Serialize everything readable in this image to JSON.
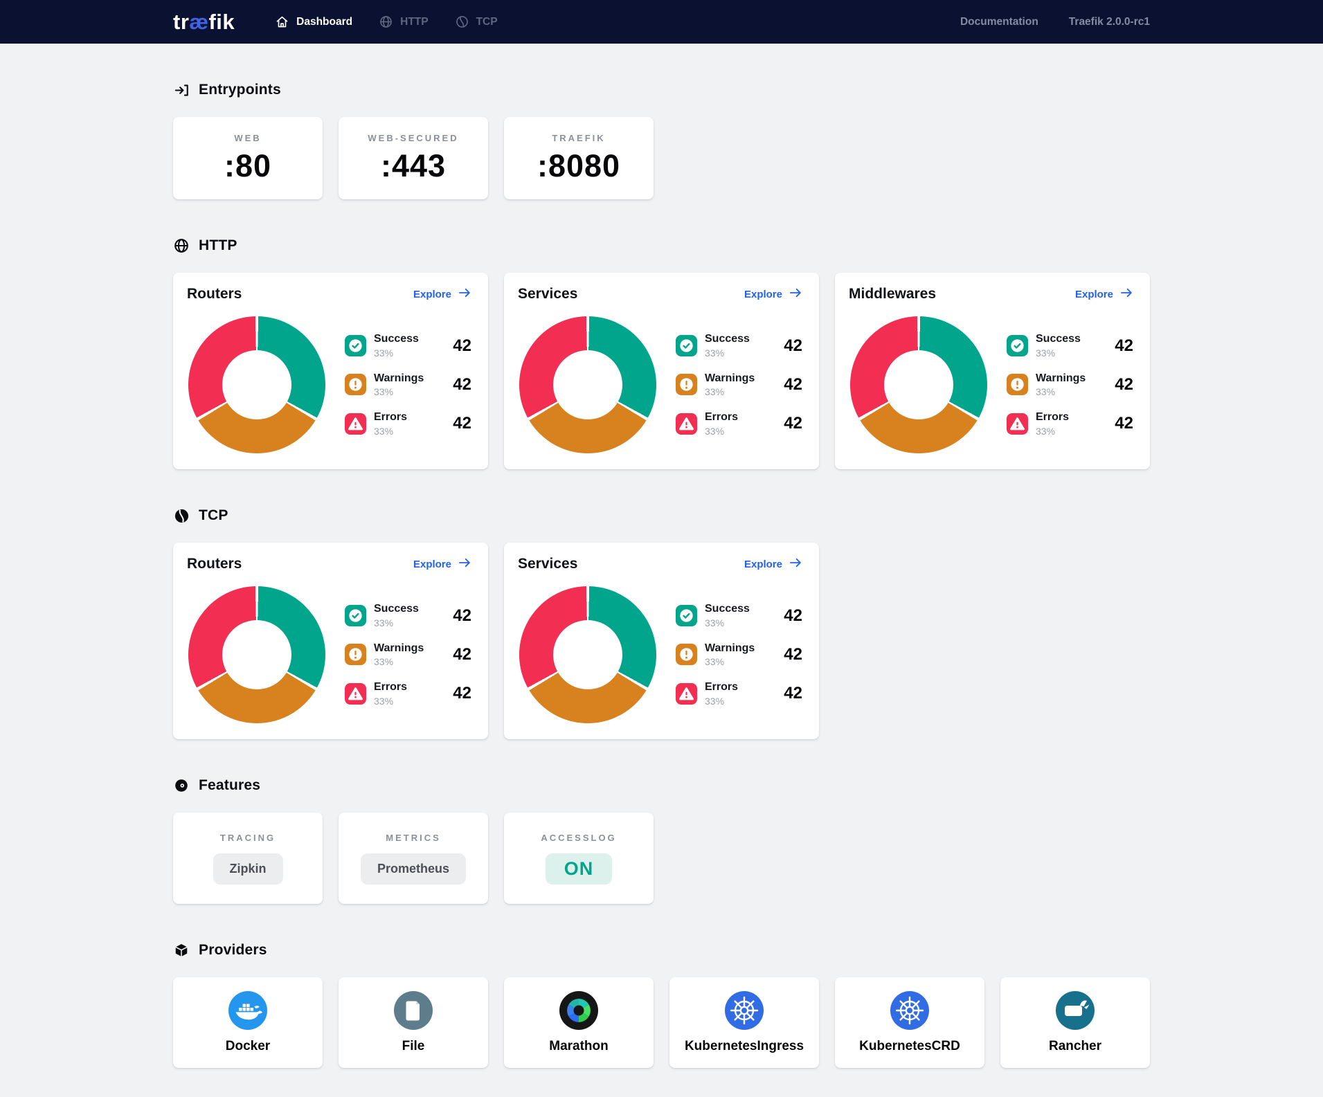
{
  "navbar": {
    "logo": {
      "pre": "tr",
      "mid": "æ",
      "post": "fik"
    },
    "items": [
      {
        "label": "Dashboard",
        "icon": "home-icon",
        "active": true
      },
      {
        "label": "HTTP",
        "icon": "globe-icon",
        "active": false
      },
      {
        "label": "TCP",
        "icon": "ball-icon",
        "active": false
      }
    ],
    "right": [
      {
        "label": "Documentation",
        "interactable": true
      },
      {
        "label": "Traefik 2.0.0-rc1",
        "interactable": false
      }
    ]
  },
  "sections": {
    "entrypoints": {
      "title": "Entrypoints",
      "icon": "login-icon",
      "cards": [
        {
          "label": "WEB",
          "value": ":80"
        },
        {
          "label": "WEB-SECURED",
          "value": ":443"
        },
        {
          "label": "TRAEFIK",
          "value": ":8080"
        }
      ]
    },
    "http": {
      "title": "HTTP",
      "icon": "globe-icon",
      "panels": [
        "Routers",
        "Services",
        "Middlewares"
      ]
    },
    "tcp": {
      "title": "TCP",
      "icon": "ball-icon",
      "panels": [
        "Routers",
        "Services"
      ]
    },
    "features": {
      "title": "Features",
      "icon": "toggle-icon",
      "cards": [
        {
          "label": "TRACING",
          "value": "Zipkin",
          "variant": "gray"
        },
        {
          "label": "METRICS",
          "value": "Prometheus",
          "variant": "gray"
        },
        {
          "label": "ACCESSLOG",
          "value": "ON",
          "variant": "teal"
        }
      ]
    },
    "providers": {
      "title": "Providers",
      "icon": "package-icon",
      "cards": [
        {
          "label": "Docker",
          "icon": "docker-icon"
        },
        {
          "label": "File",
          "icon": "file-icon"
        },
        {
          "label": "Marathon",
          "icon": "marathon-icon"
        },
        {
          "label": "KubernetesIngress",
          "icon": "kubernetes-icon"
        },
        {
          "label": "KubernetesCRD",
          "icon": "kubernetes-icon"
        },
        {
          "label": "Rancher",
          "icon": "rancher-icon"
        }
      ]
    }
  },
  "panel_common": {
    "explore_label": "Explore",
    "legend": [
      {
        "name": "Success",
        "pct": "33%",
        "count": "42",
        "icon": "check-icon",
        "color": "#00a58c"
      },
      {
        "name": "Warnings",
        "pct": "33%",
        "count": "42",
        "icon": "exclamation-icon",
        "color": "#d8821f"
      },
      {
        "name": "Errors",
        "pct": "33%",
        "count": "42",
        "icon": "warning-triangle-icon",
        "color": "#f22e52"
      }
    ]
  },
  "chart_data": [
    {
      "type": "pie",
      "variant": "donut",
      "section": "HTTP",
      "title": "Routers",
      "labels": [
        "Success",
        "Warnings",
        "Errors"
      ],
      "values": [
        33,
        33,
        33
      ],
      "counts": [
        42,
        42,
        42
      ],
      "colors": [
        "#00a58c",
        "#d8821f",
        "#f22e52"
      ],
      "legend_position": "right"
    },
    {
      "type": "pie",
      "variant": "donut",
      "section": "HTTP",
      "title": "Services",
      "labels": [
        "Success",
        "Warnings",
        "Errors"
      ],
      "values": [
        33,
        33,
        33
      ],
      "counts": [
        42,
        42,
        42
      ],
      "colors": [
        "#00a58c",
        "#d8821f",
        "#f22e52"
      ],
      "legend_position": "right"
    },
    {
      "type": "pie",
      "variant": "donut",
      "section": "HTTP",
      "title": "Middlewares",
      "labels": [
        "Success",
        "Warnings",
        "Errors"
      ],
      "values": [
        33,
        33,
        33
      ],
      "counts": [
        42,
        42,
        42
      ],
      "colors": [
        "#00a58c",
        "#d8821f",
        "#f22e52"
      ],
      "legend_position": "right"
    },
    {
      "type": "pie",
      "variant": "donut",
      "section": "TCP",
      "title": "Routers",
      "labels": [
        "Success",
        "Warnings",
        "Errors"
      ],
      "values": [
        33,
        33,
        33
      ],
      "counts": [
        42,
        42,
        42
      ],
      "colors": [
        "#00a58c",
        "#d8821f",
        "#f22e52"
      ],
      "legend_position": "right"
    },
    {
      "type": "pie",
      "variant": "donut",
      "section": "TCP",
      "title": "Services",
      "labels": [
        "Success",
        "Warnings",
        "Errors"
      ],
      "values": [
        33,
        33,
        33
      ],
      "counts": [
        42,
        42,
        42
      ],
      "colors": [
        "#00a58c",
        "#d8821f",
        "#f22e52"
      ],
      "legend_position": "right"
    }
  ],
  "colors": {
    "navbar_bg": "#0b1131",
    "page_bg": "#f1f2f4",
    "logo_accent": "#3e64e4",
    "success": "#00a58c",
    "warning": "#d8821f",
    "error": "#f22e52",
    "link": "#2262ea",
    "on_pill_bg": "#dcf1ec",
    "docker_blue": "#2496ed",
    "kubernetes_blue": "#326ce5",
    "rancher_teal": "#17718c",
    "file_slate": "#5e7d8c"
  }
}
